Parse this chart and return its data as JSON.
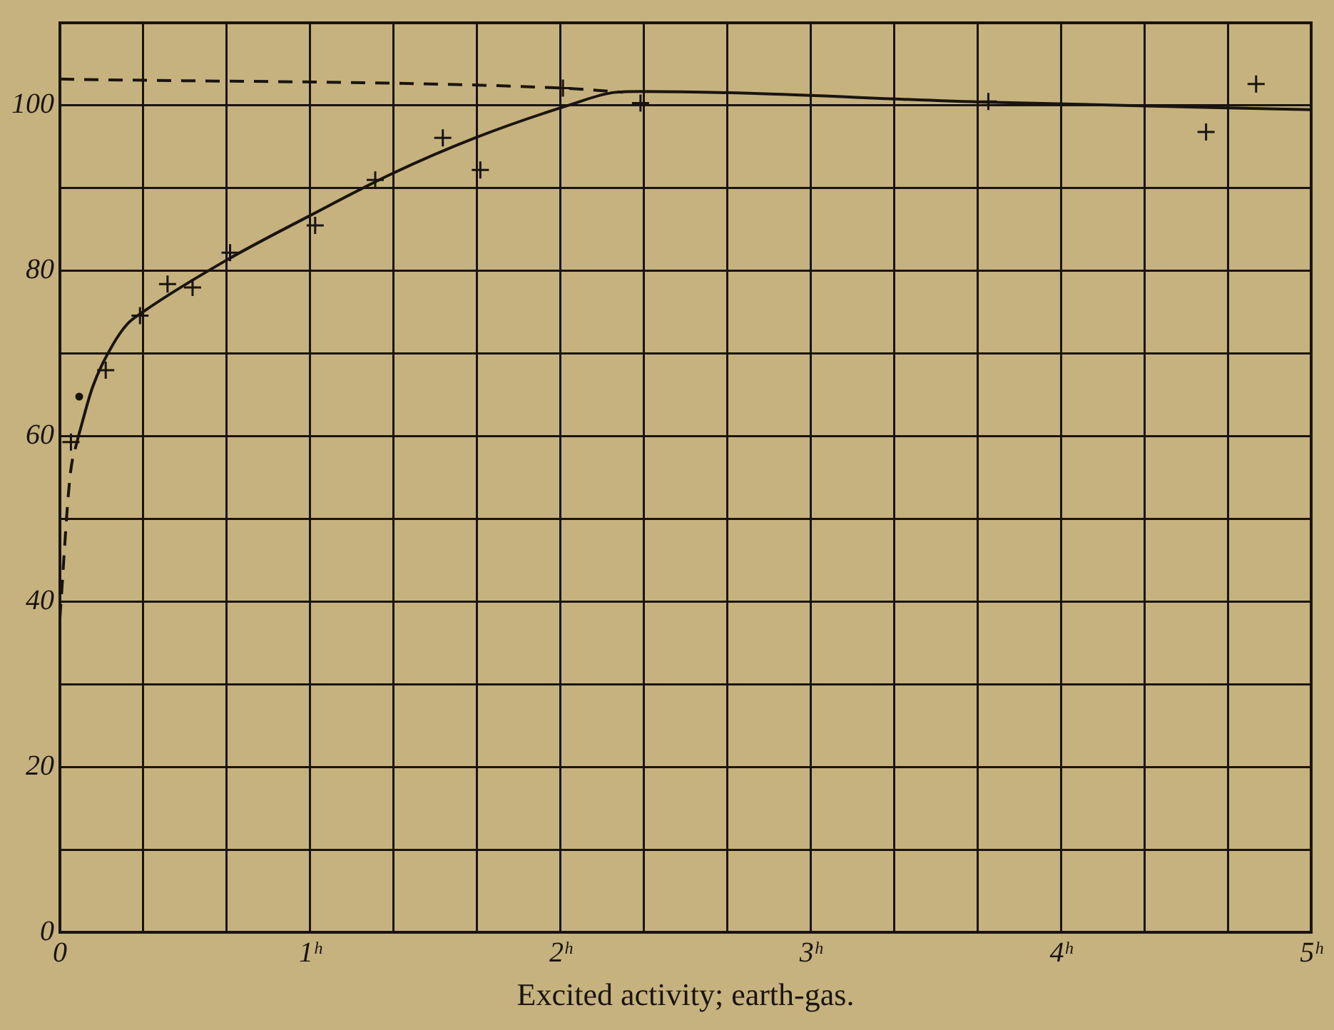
{
  "chart_data": {
    "type": "line",
    "xlabel": "Excited activity; earth-gas.",
    "xlim": [
      0,
      5
    ],
    "ylim": [
      0,
      110
    ],
    "xticks": [
      0,
      {
        "value": 0.333,
        "label": null
      },
      {
        "value": 0.667,
        "label": null
      },
      {
        "value": 1,
        "label": "1ʰ"
      },
      {
        "value": 1.333,
        "label": null
      },
      {
        "value": 1.667,
        "label": null
      },
      {
        "value": 2,
        "label": "2ʰ"
      },
      {
        "value": 2.333,
        "label": null
      },
      {
        "value": 2.667,
        "label": null
      },
      {
        "value": 3,
        "label": "3ʰ"
      },
      {
        "value": 3.333,
        "label": null
      },
      {
        "value": 3.667,
        "label": null
      },
      {
        "value": 4,
        "label": "4ʰ"
      },
      {
        "value": 4.333,
        "label": null
      },
      {
        "value": 4.667,
        "label": null
      },
      {
        "value": 5,
        "label": "5ʰ"
      }
    ],
    "yticks": [
      0,
      {
        "value": 10,
        "label": null
      },
      20,
      {
        "value": 30,
        "label": null
      },
      40,
      {
        "value": 50,
        "label": null
      },
      60,
      {
        "value": 70,
        "label": null
      },
      80,
      {
        "value": 90,
        "label": null
      },
      100
    ],
    "grid": true,
    "legend": false,
    "series": [
      {
        "type": "line",
        "color": "#1a1410",
        "line_style": "solid",
        "marker": "none",
        "x": [
          0.073,
          0.13,
          0.21,
          0.27,
          0.33,
          0.66,
          1.0,
          1.33,
          1.66,
          2.03,
          2.22,
          2.32,
          3.71,
          5.0
        ],
        "values": [
          59.9,
          65.9,
          71,
          73.6,
          75,
          81.2,
          86.7,
          91.8,
          96.1,
          100,
          101.6,
          101.7,
          100.4,
          99.5
        ]
      },
      {
        "type": "line",
        "color": "#1a1410",
        "line_style": "dashed",
        "marker": "none",
        "x": [
          0,
          2.01,
          2.25
        ],
        "values": [
          103.2,
          102.1,
          101.6
        ]
      },
      {
        "type": "line",
        "color": "#1a1410",
        "line_style": "dashed",
        "marker": "none",
        "x": [
          0,
          0.04,
          0.073
        ],
        "values": [
          38,
          55,
          59.9
        ]
      },
      {
        "type": "scatter",
        "color": "#1a1410",
        "marker": "cross",
        "x": [
          0.044,
          0.183,
          0.32,
          0.43,
          0.53,
          0.68,
          1.02,
          1.26,
          1.53,
          1.68,
          2.01,
          2.32,
          3.71,
          4.58,
          4.78
        ],
        "values": [
          59.3,
          68.0,
          74.6,
          78.4,
          78.0,
          82.2,
          85.5,
          91.0,
          96.1,
          92.2,
          102.1,
          100.3,
          100.5,
          96.8,
          102.6
        ]
      },
      {
        "type": "scatter",
        "color": "#1a1410",
        "marker": "circle",
        "x": [
          0.077
        ],
        "values": [
          64.8
        ]
      }
    ]
  }
}
